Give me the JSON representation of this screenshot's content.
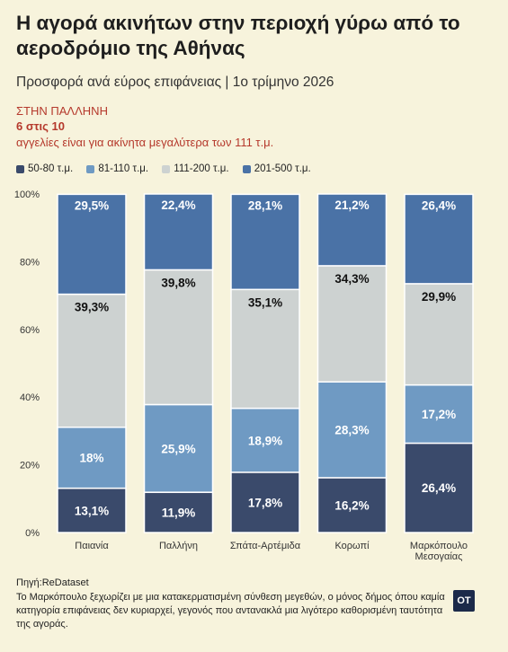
{
  "title": "Η αγορά ακινήτων στην περιοχή γύρω από το αεροδρόμιο της Αθήνας",
  "subtitle": "Προσφορά ανά εύρος επιφάνειας | 1ο τρίμηνο 2026",
  "highlight": {
    "line1": "ΣΤΗΝ ΠΑΛΛΗΝΗ",
    "line2": "6 στις 10",
    "line3": "αγγελίες είναι για ακίνητα μεγαλύτερα των 111 τ.μ."
  },
  "footer": {
    "source": "Πηγή:ReDataset",
    "note": "Το Μαρκόπουλο ξεχωρίζει με μια κατακερματισμένη σύνθεση μεγεθών, ο μόνος δήμος όπου καμία κατηγορία επιφάνειας δεν κυριαρχεί, γεγονός που αντανακλά μια λιγότερο καθορισμένη ταυτότητα της αγοράς.",
    "logo_text": "OT"
  },
  "chart_data": {
    "type": "bar",
    "stacked": true,
    "categories": [
      "Παιανία",
      "Παλλήνη",
      "Σπάτα-Αρτέμιδα",
      "Κορωπί",
      "Μαρκόπουλο Μεσογαίας"
    ],
    "series": [
      {
        "name": "50-80 τ.μ.",
        "color": "#3a4a6b",
        "label_color": "#ffffff",
        "values": [
          13.1,
          11.9,
          17.8,
          16.2,
          26.4
        ],
        "labels": [
          "13,1%",
          "11,9%",
          "17,8%",
          "16,2%",
          "26,4%"
        ]
      },
      {
        "name": "81-110 τ.μ.",
        "color": "#6f9ac3",
        "label_color": "#ffffff",
        "values": [
          18.0,
          25.9,
          18.9,
          28.3,
          17.2
        ],
        "labels": [
          "18%",
          "25,9%",
          "18,9%",
          "28,3%",
          "17,2%"
        ]
      },
      {
        "name": "111-200 τ.μ.",
        "color": "#cdd2d1",
        "label_color": "#111111",
        "values": [
          39.3,
          39.8,
          35.1,
          34.3,
          29.9
        ],
        "labels": [
          "39,3%",
          "39,8%",
          "35,1%",
          "34,3%",
          "29,9%"
        ]
      },
      {
        "name": "201-500 τ.μ.",
        "color": "#4a72a6",
        "label_color": "#ffffff",
        "values": [
          29.5,
          22.4,
          28.1,
          21.2,
          26.4
        ],
        "labels": [
          "29,5%",
          "22,4%",
          "28,1%",
          "21,2%",
          "26,4%"
        ]
      }
    ],
    "y_ticks": [
      "0%",
      "20%",
      "40%",
      "60%",
      "80%",
      "100%"
    ],
    "ylim": [
      0,
      100
    ],
    "legend_position": "top-left"
  }
}
